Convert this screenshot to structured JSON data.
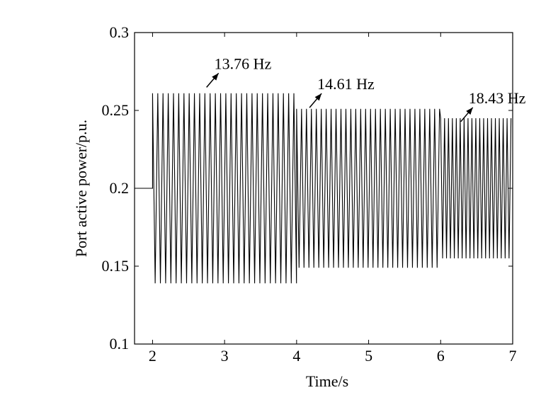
{
  "chart_data": {
    "type": "line",
    "title": "",
    "xlabel": "Time/s",
    "ylabel": "Port active power/p.u.",
    "xlim": [
      1.75,
      7
    ],
    "ylim": [
      0.1,
      0.3
    ],
    "xticks": [
      2,
      3,
      4,
      5,
      6,
      7
    ],
    "xtick_labels": [
      "2",
      "3",
      "4",
      "5",
      "6",
      "7"
    ],
    "yticks": [
      0.1,
      0.15,
      0.2,
      0.25,
      0.3
    ],
    "ytick_labels": [
      "0.1",
      "0.15",
      "0.2",
      "0.25",
      "0.3"
    ],
    "grid": false,
    "line_color": "#000000",
    "series": [
      {
        "segments": [
          {
            "x_start": 1.75,
            "x_end": 2.0,
            "constant": 0.2
          },
          {
            "x_start": 2.0,
            "x_end": 4.0,
            "frequency_hz": 13.76,
            "max": 0.261,
            "min": 0.139
          },
          {
            "x_start": 4.0,
            "x_end": 6.0,
            "frequency_hz": 14.61,
            "max": 0.251,
            "min": 0.149
          },
          {
            "x_start": 6.0,
            "x_end": 7.0,
            "frequency_hz": 18.43,
            "max": 0.245,
            "min": 0.155
          }
        ]
      }
    ],
    "annotations": [
      {
        "text": "13.76 Hz",
        "x": 2.72,
        "y": 0.263
      },
      {
        "text": "14.61 Hz",
        "x": 4.15,
        "y": 0.25
      },
      {
        "text": "18.43 Hz",
        "x": 6.25,
        "y": 0.241
      }
    ]
  }
}
